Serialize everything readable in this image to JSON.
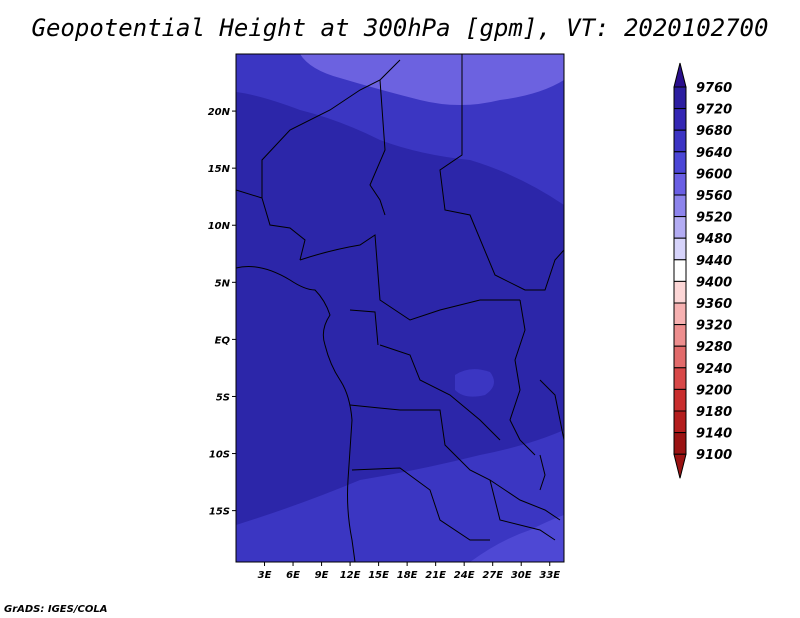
{
  "title": "Geopotential Height at 300hPa [gpm], VT: 2020102700",
  "footer": "GrADS: IGES/COLA",
  "colors": {
    "fill_9680_9720": "#2c26a9",
    "fill_9640_9680": "#3b36c2",
    "fill_9600_9640": "#4e48d4",
    "fill_9560_9600": "#6c62e0",
    "border": "#000000"
  },
  "chart_data": {
    "type": "heatmap",
    "title": "Geopotential Height at 300hPa [gpm], VT: 2020102700",
    "x_axis": {
      "ticks": [
        "3E",
        "6E",
        "9E",
        "12E",
        "15E",
        "18E",
        "21E",
        "24E",
        "27E",
        "30E",
        "33E"
      ],
      "tick_values": [
        3,
        6,
        9,
        12,
        15,
        18,
        21,
        24,
        27,
        30,
        33
      ],
      "range": [
        0,
        34.5
      ]
    },
    "y_axis": {
      "ticks": [
        "20N",
        "15N",
        "10N",
        "5N",
        "EQ",
        "5S",
        "10S",
        "15S"
      ],
      "tick_values": [
        20,
        15,
        10,
        5,
        0,
        -5,
        -10,
        -15
      ],
      "range": [
        -19.5,
        25
      ]
    },
    "colorbar": {
      "levels": [
        9760,
        9720,
        9680,
        9640,
        9600,
        9560,
        9520,
        9480,
        9440,
        9400,
        9360,
        9320,
        9280,
        9240,
        9200,
        9180,
        9140,
        9100
      ],
      "colors": [
        "#2a0f8c",
        "#2c1ea0",
        "#3427b4",
        "#3c34c4",
        "#4b46d6",
        "#6a5fe4",
        "#8d84ec",
        "#b3acf3",
        "#d6d3fa",
        "#ffffff",
        "#fcd6d6",
        "#f6b1b1",
        "#ed8e8e",
        "#e26b6b",
        "#d84848",
        "#c92e2e",
        "#b31d1d",
        "#9a1212"
      ]
    },
    "regions": [
      {
        "name": "north-low",
        "range": "9600-9640"
      },
      {
        "name": "north-band",
        "range": "9640-9680"
      },
      {
        "name": "main",
        "range": "9680-9720"
      },
      {
        "name": "south-band",
        "range": "9640-9680"
      },
      {
        "name": "southeast-low",
        "range": "9600-9640"
      }
    ]
  }
}
